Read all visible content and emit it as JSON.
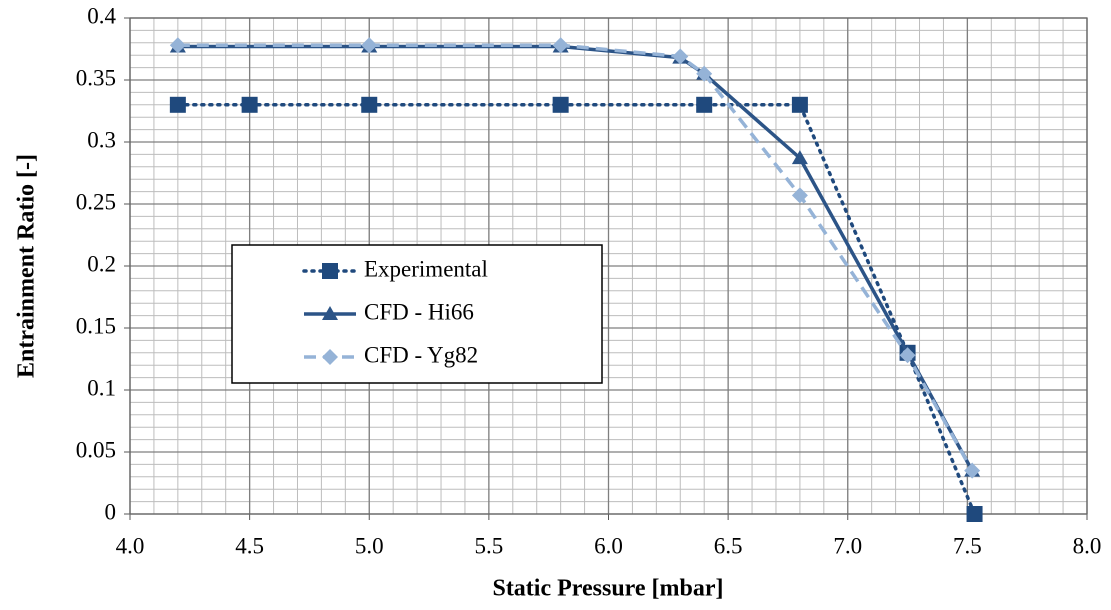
{
  "chart_data": {
    "type": "line",
    "x_label": "Static Pressure [mbar]",
    "y_label": "Entrainment Ratio [-]",
    "xlim": [
      4.0,
      8.0
    ],
    "xticks": [
      {
        "value": 4.0,
        "label": "4.0"
      },
      4.5,
      {
        "value": 5.0,
        "label": "5.0"
      },
      5.5,
      {
        "value": 6.0,
        "label": "6.0"
      },
      6.5,
      {
        "value": 7.0,
        "label": "7.0"
      },
      7.5,
      {
        "value": 8.0,
        "label": "8.0"
      }
    ],
    "ylim": [
      0,
      0.4
    ],
    "yticks": [
      0,
      0.05,
      0.1,
      0.15,
      0.2,
      0.25,
      0.3,
      0.35,
      0.4
    ],
    "grid": true,
    "minor_grid": {
      "x": 0.1,
      "y": 0.01
    },
    "legend": "center-left",
    "series": [
      {
        "name": "Experimental",
        "color": "#1f497d",
        "dash": "dotted",
        "marker": "square",
        "x": [
          4.2,
          4.5,
          5.0,
          5.8,
          6.4,
          6.8,
          7.25,
          7.53
        ],
        "values": [
          0.33,
          0.33,
          0.33,
          0.33,
          0.33,
          0.33,
          0.13,
          0.0
        ]
      },
      {
        "name": "CFD - Hi66",
        "color": "#2c5487",
        "dash": "solid",
        "marker": "triangle",
        "x": [
          4.2,
          5.0,
          5.8,
          6.3,
          6.4,
          6.8,
          7.25,
          7.52
        ],
        "values": [
          0.377,
          0.377,
          0.377,
          0.368,
          0.355,
          0.287,
          0.13,
          0.035
        ]
      },
      {
        "name": "CFD - Yg82",
        "color": "#95b3d7",
        "dash": "dashed",
        "marker": "diamond",
        "x": [
          4.2,
          5.0,
          5.8,
          6.3,
          6.4,
          6.8,
          7.25,
          7.52
        ],
        "values": [
          0.378,
          0.378,
          0.378,
          0.369,
          0.355,
          0.257,
          0.128,
          0.035
        ]
      }
    ]
  }
}
